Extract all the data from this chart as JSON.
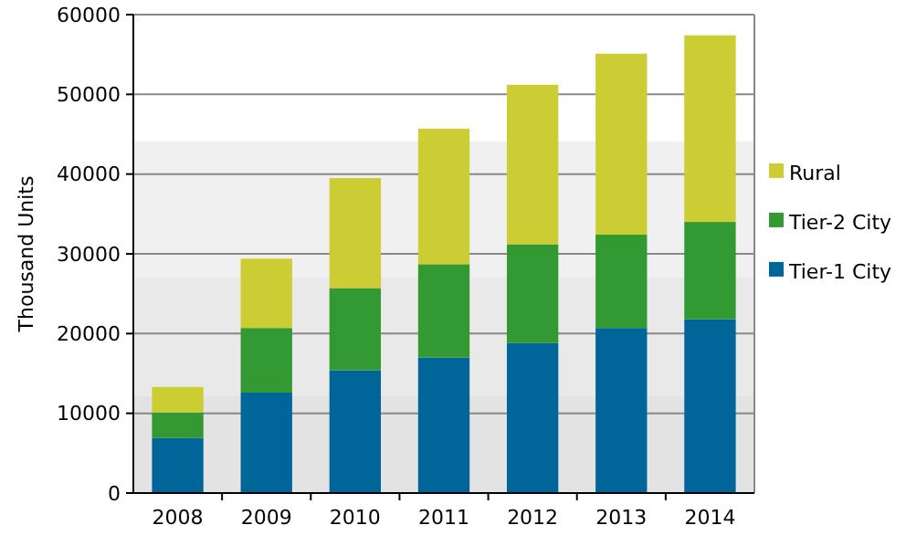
{
  "chart_data": {
    "type": "bar",
    "ylabel": "Thousand Units",
    "categories": [
      "2008",
      "2009",
      "2010",
      "2011",
      "2012",
      "2013",
      "2014"
    ],
    "stacked": true,
    "series": [
      {
        "name": "Tier-1 City",
        "color": "#00669a",
        "values": [
          6900,
          12600,
          15400,
          17000,
          18800,
          20700,
          21800
        ]
      },
      {
        "name": "Tier-2 City",
        "color": "#339933",
        "values": [
          3200,
          8100,
          10300,
          11700,
          12400,
          11700,
          12200
        ]
      },
      {
        "name": "Rural",
        "color": "#cccc33",
        "values": [
          3200,
          8700,
          13800,
          17000,
          20000,
          22700,
          23400
        ]
      }
    ],
    "ylim": [
      0,
      60000
    ],
    "yticks": [
      0,
      10000,
      20000,
      30000,
      40000,
      50000,
      60000
    ],
    "grid": "y",
    "legend": "right",
    "bands": [
      {
        "axis": "y",
        "from": 0,
        "to": 12200,
        "color": "#e3e3e3"
      },
      {
        "axis": "y",
        "from": 12200,
        "to": 27100,
        "color": "#e9e9e9"
      },
      {
        "axis": "y",
        "from": 27100,
        "to": 44100,
        "color": "#f0f0f0"
      }
    ]
  }
}
